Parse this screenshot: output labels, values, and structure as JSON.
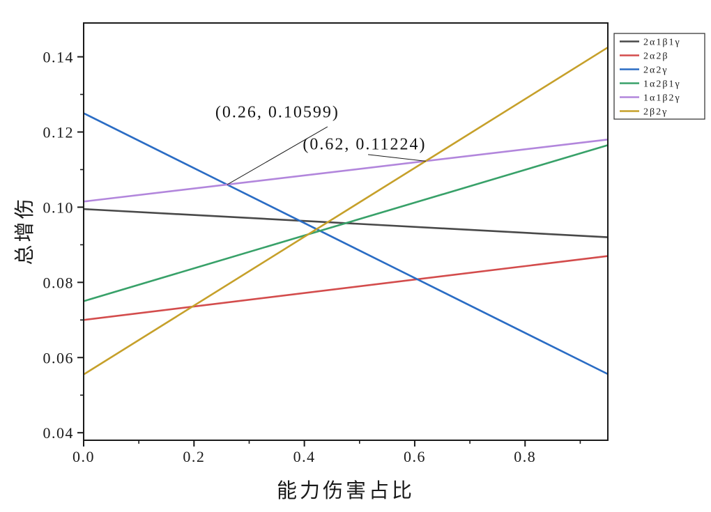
{
  "chart_data": {
    "type": "line",
    "title": "",
    "xlabel": "能力伤害占比",
    "ylabel": "总增伤",
    "xlim": [
      0,
      0.95
    ],
    "ylim": [
      0.038,
      0.149
    ],
    "grid": false,
    "legend_position": "top-right-outside",
    "x_ticks": [
      0.0,
      0.2,
      0.4,
      0.6,
      0.8
    ],
    "x_tick_labels": [
      "0.0",
      "0.2",
      "0.4",
      "0.6",
      "0.8"
    ],
    "x_minor_ticks": [
      0.1,
      0.3,
      0.5,
      0.7,
      0.9
    ],
    "y_ticks": [
      0.04,
      0.06,
      0.08,
      0.1,
      0.12,
      0.14
    ],
    "y_tick_labels": [
      "0.04",
      "0.06",
      "0.08",
      "0.10",
      "0.12",
      "0.14"
    ],
    "y_minor_ticks": [
      0.05,
      0.07,
      0.09,
      0.11,
      0.13
    ],
    "x": [
      0,
      0.95
    ],
    "series": [
      {
        "name": "2α1β1γ",
        "color": "#494949",
        "values": [
          0.0995,
          0.092
        ]
      },
      {
        "name": "2α2β",
        "color": "#d34c4c",
        "values": [
          0.07,
          0.087
        ]
      },
      {
        "name": "2α2γ",
        "color": "#2a6cc4",
        "values": [
          0.125,
          0.0556
        ]
      },
      {
        "name": "1α2β1γ",
        "color": "#38a169",
        "values": [
          0.075,
          0.1165
        ]
      },
      {
        "name": "1α1β2γ",
        "color": "#b286dc",
        "values": [
          0.1015,
          0.118
        ]
      },
      {
        "name": "2β2γ",
        "color": "#c6a02a",
        "values": [
          0.0555,
          0.1425
        ]
      }
    ],
    "annotations": [
      {
        "label": "(0.26, 0.10599)",
        "point": [
          0.26,
          0.10599
        ],
        "text_xy": [
          0.351,
          0.1251
        ],
        "leader": [
          [
            0.442,
            0.1214
          ],
          [
            0.26,
            0.10599
          ]
        ]
      },
      {
        "label": "(0.62, 0.11224)",
        "point": [
          0.62,
          0.11224
        ],
        "text_xy": [
          0.509,
          0.1166
        ],
        "leader": [
          [
            0.5155,
            0.114
          ],
          [
            0.62,
            0.11224
          ]
        ]
      }
    ],
    "axis_color": "#1a1a1a"
  }
}
